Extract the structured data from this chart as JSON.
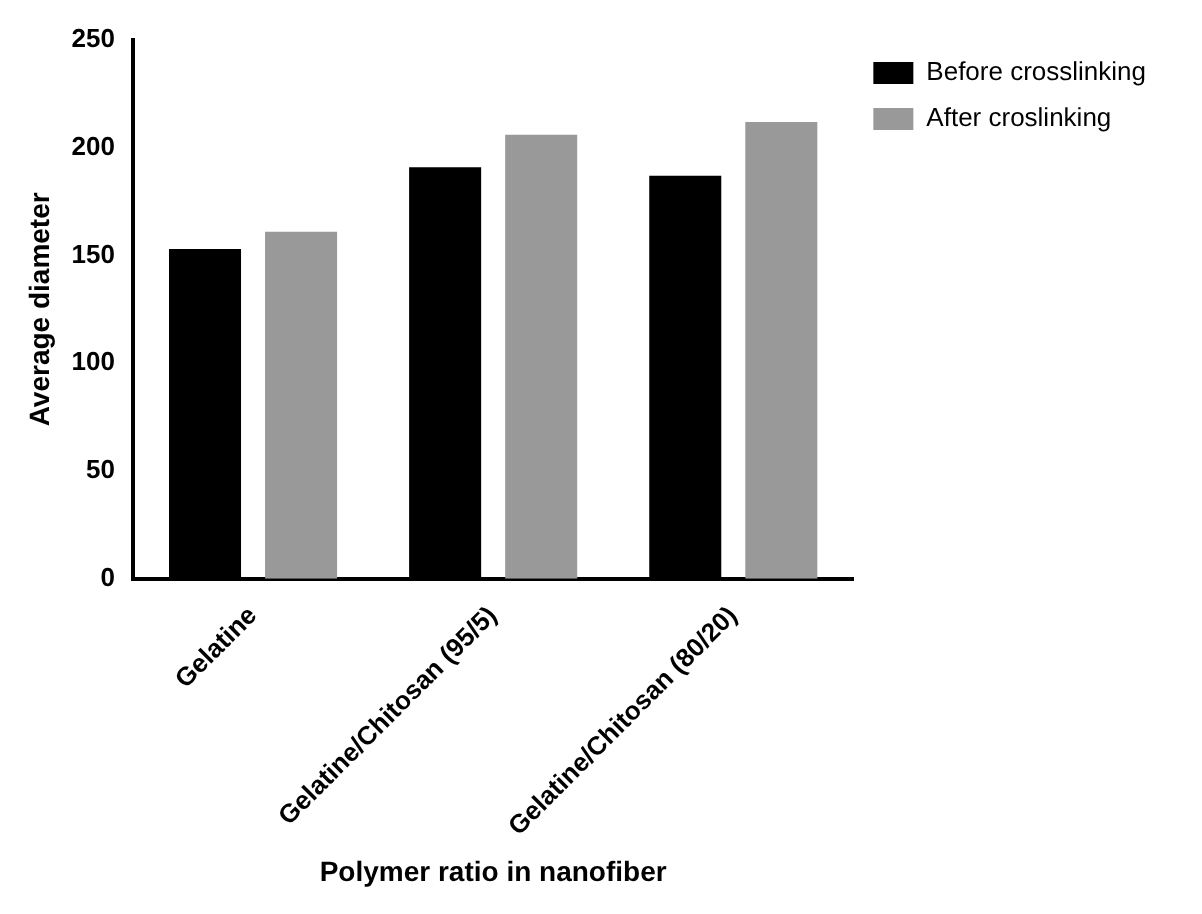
{
  "chart_data": {
    "type": "bar",
    "xlabel": "Polymer ratio in nanofiber",
    "ylabel": "Average diameter",
    "categories": [
      "Gelatine",
      "Gelatine/Chitosan (95/5)",
      "Gelatine/Chitosan (80/20)"
    ],
    "series": [
      {
        "name": "Before crosslinking",
        "color": "#000000",
        "values": [
          153,
          191,
          187
        ]
      },
      {
        "name": "After croslinking",
        "color": "#999999",
        "values": [
          161,
          206,
          212
        ]
      }
    ],
    "ylim": [
      0,
      250
    ],
    "yticks": [
      0,
      50,
      100,
      150,
      200,
      250
    ],
    "grid": false,
    "legend": "top right"
  }
}
